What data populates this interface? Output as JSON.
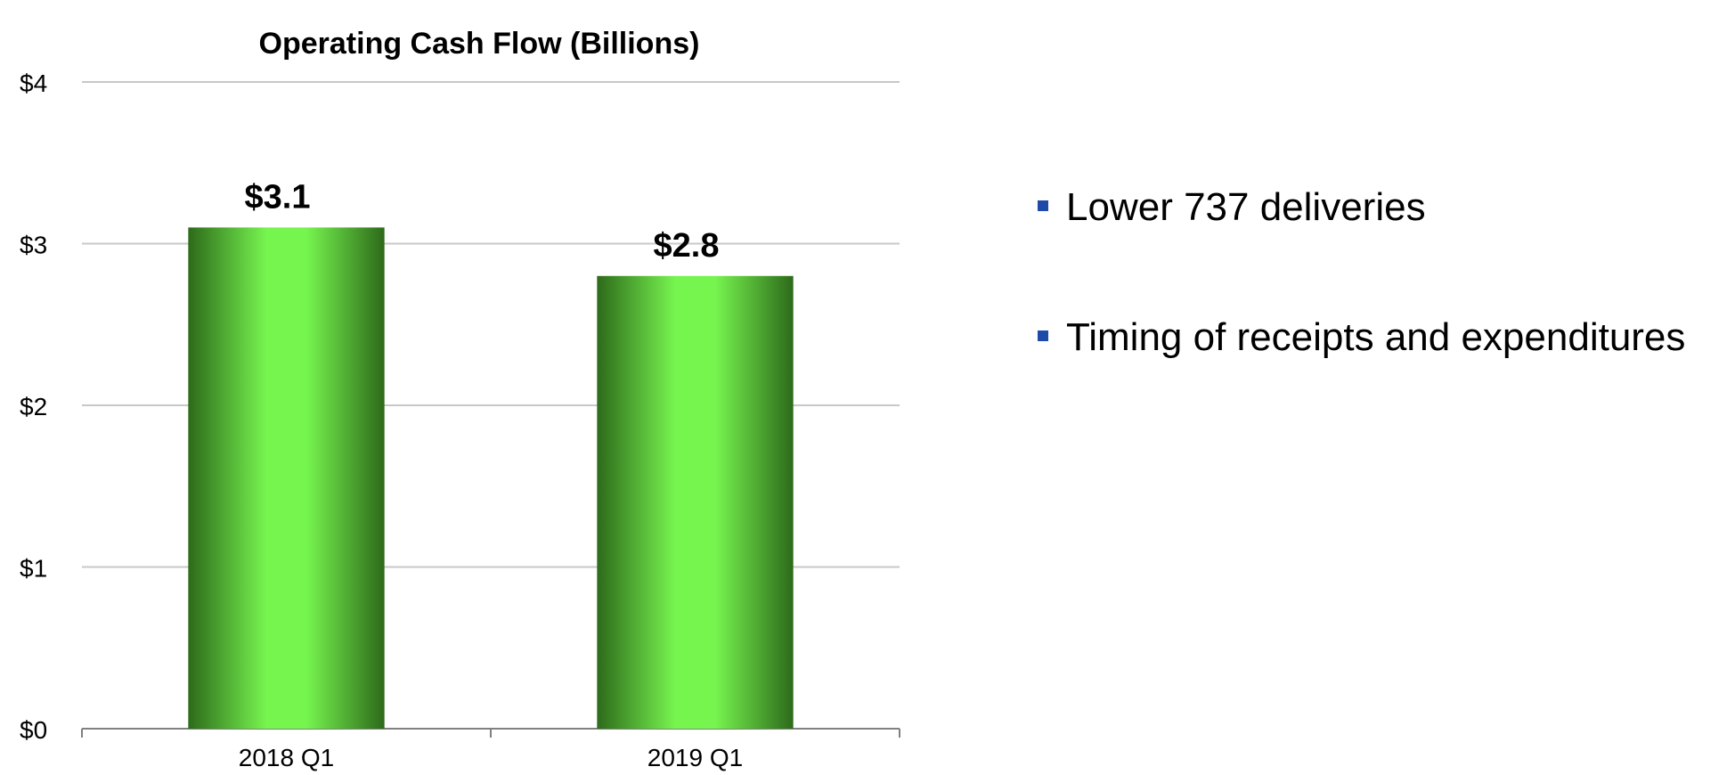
{
  "chart_data": {
    "type": "bar",
    "title": "Operating Cash Flow (Billions)",
    "categories": [
      "2018 Q1",
      "2019 Q1"
    ],
    "values": [
      3.1,
      2.8
    ],
    "value_labels": [
      "$3.1",
      "$2.8"
    ],
    "ylim": [
      0,
      4
    ],
    "yticks": [
      0,
      1,
      2,
      3,
      4
    ],
    "ytick_labels": [
      "$0",
      "$1",
      "$2",
      "$3",
      "$4"
    ],
    "xlabel": "",
    "ylabel": "",
    "grid": true,
    "legend": "none",
    "bar_color_light": "#77f54f",
    "bar_color_dark": "#2d6a1a"
  },
  "bullets": {
    "marker_color": "#1e4aa8",
    "items": [
      {
        "text": "Lower 737 deliveries"
      },
      {
        "text": "Timing of receipts and expenditures"
      }
    ]
  }
}
